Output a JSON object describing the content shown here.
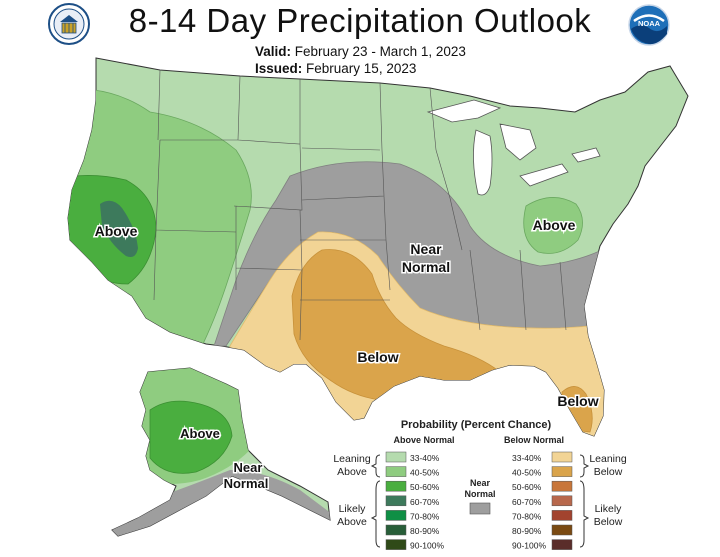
{
  "title": "8-14 Day Precipitation Outlook",
  "valid_label": "Valid:",
  "valid_dates": "February 23 - March 1, 2023",
  "issued_label": "Issued:",
  "issued_date": "February 15, 2023",
  "logos": {
    "left": "department-of-commerce-seal-icon",
    "right": "noaa-logo-icon"
  },
  "map_labels": {
    "west_above": "Above",
    "ohio_above": "Above",
    "central_near": [
      "Near",
      "Normal"
    ],
    "south_below": "Below",
    "florida_below": "Below",
    "alaska_above": "Above",
    "alaska_near": [
      "Near",
      "Normal"
    ]
  },
  "legend": {
    "title": "Probability (Percent Chance)",
    "above_header": "Above Normal",
    "below_header": "Below Normal",
    "near_label": [
      "Near",
      "Normal"
    ],
    "leaning_above": [
      "Leaning",
      "Above"
    ],
    "likely_above": [
      "Likely",
      "Above"
    ],
    "leaning_below": [
      "Leaning",
      "Below"
    ],
    "likely_below": [
      "Likely",
      "Below"
    ],
    "above_bins": [
      {
        "range": "33-40%",
        "color": "#b5dbae"
      },
      {
        "range": "40-50%",
        "color": "#8fcc80"
      },
      {
        "range": "50-60%",
        "color": "#4aae3f"
      },
      {
        "range": "60-70%",
        "color": "#3d7a5c"
      },
      {
        "range": "70-80%",
        "color": "#0f8f45"
      },
      {
        "range": "80-90%",
        "color": "#285e39"
      },
      {
        "range": "90-100%",
        "color": "#2f4a18"
      }
    ],
    "below_bins": [
      {
        "range": "33-40%",
        "color": "#f2d495"
      },
      {
        "range": "40-50%",
        "color": "#daa44b"
      },
      {
        "range": "50-60%",
        "color": "#c8763a"
      },
      {
        "range": "60-70%",
        "color": "#b8684c"
      },
      {
        "range": "70-80%",
        "color": "#a2432e"
      },
      {
        "range": "80-90%",
        "color": "#7a4a12"
      },
      {
        "range": "90-100%",
        "color": "#5a2d2a"
      }
    ],
    "near_color": "#9e9e9e"
  },
  "colors": {
    "land_base": "#b5dbae",
    "lakes": "#ffffff",
    "borders": "#555555"
  }
}
